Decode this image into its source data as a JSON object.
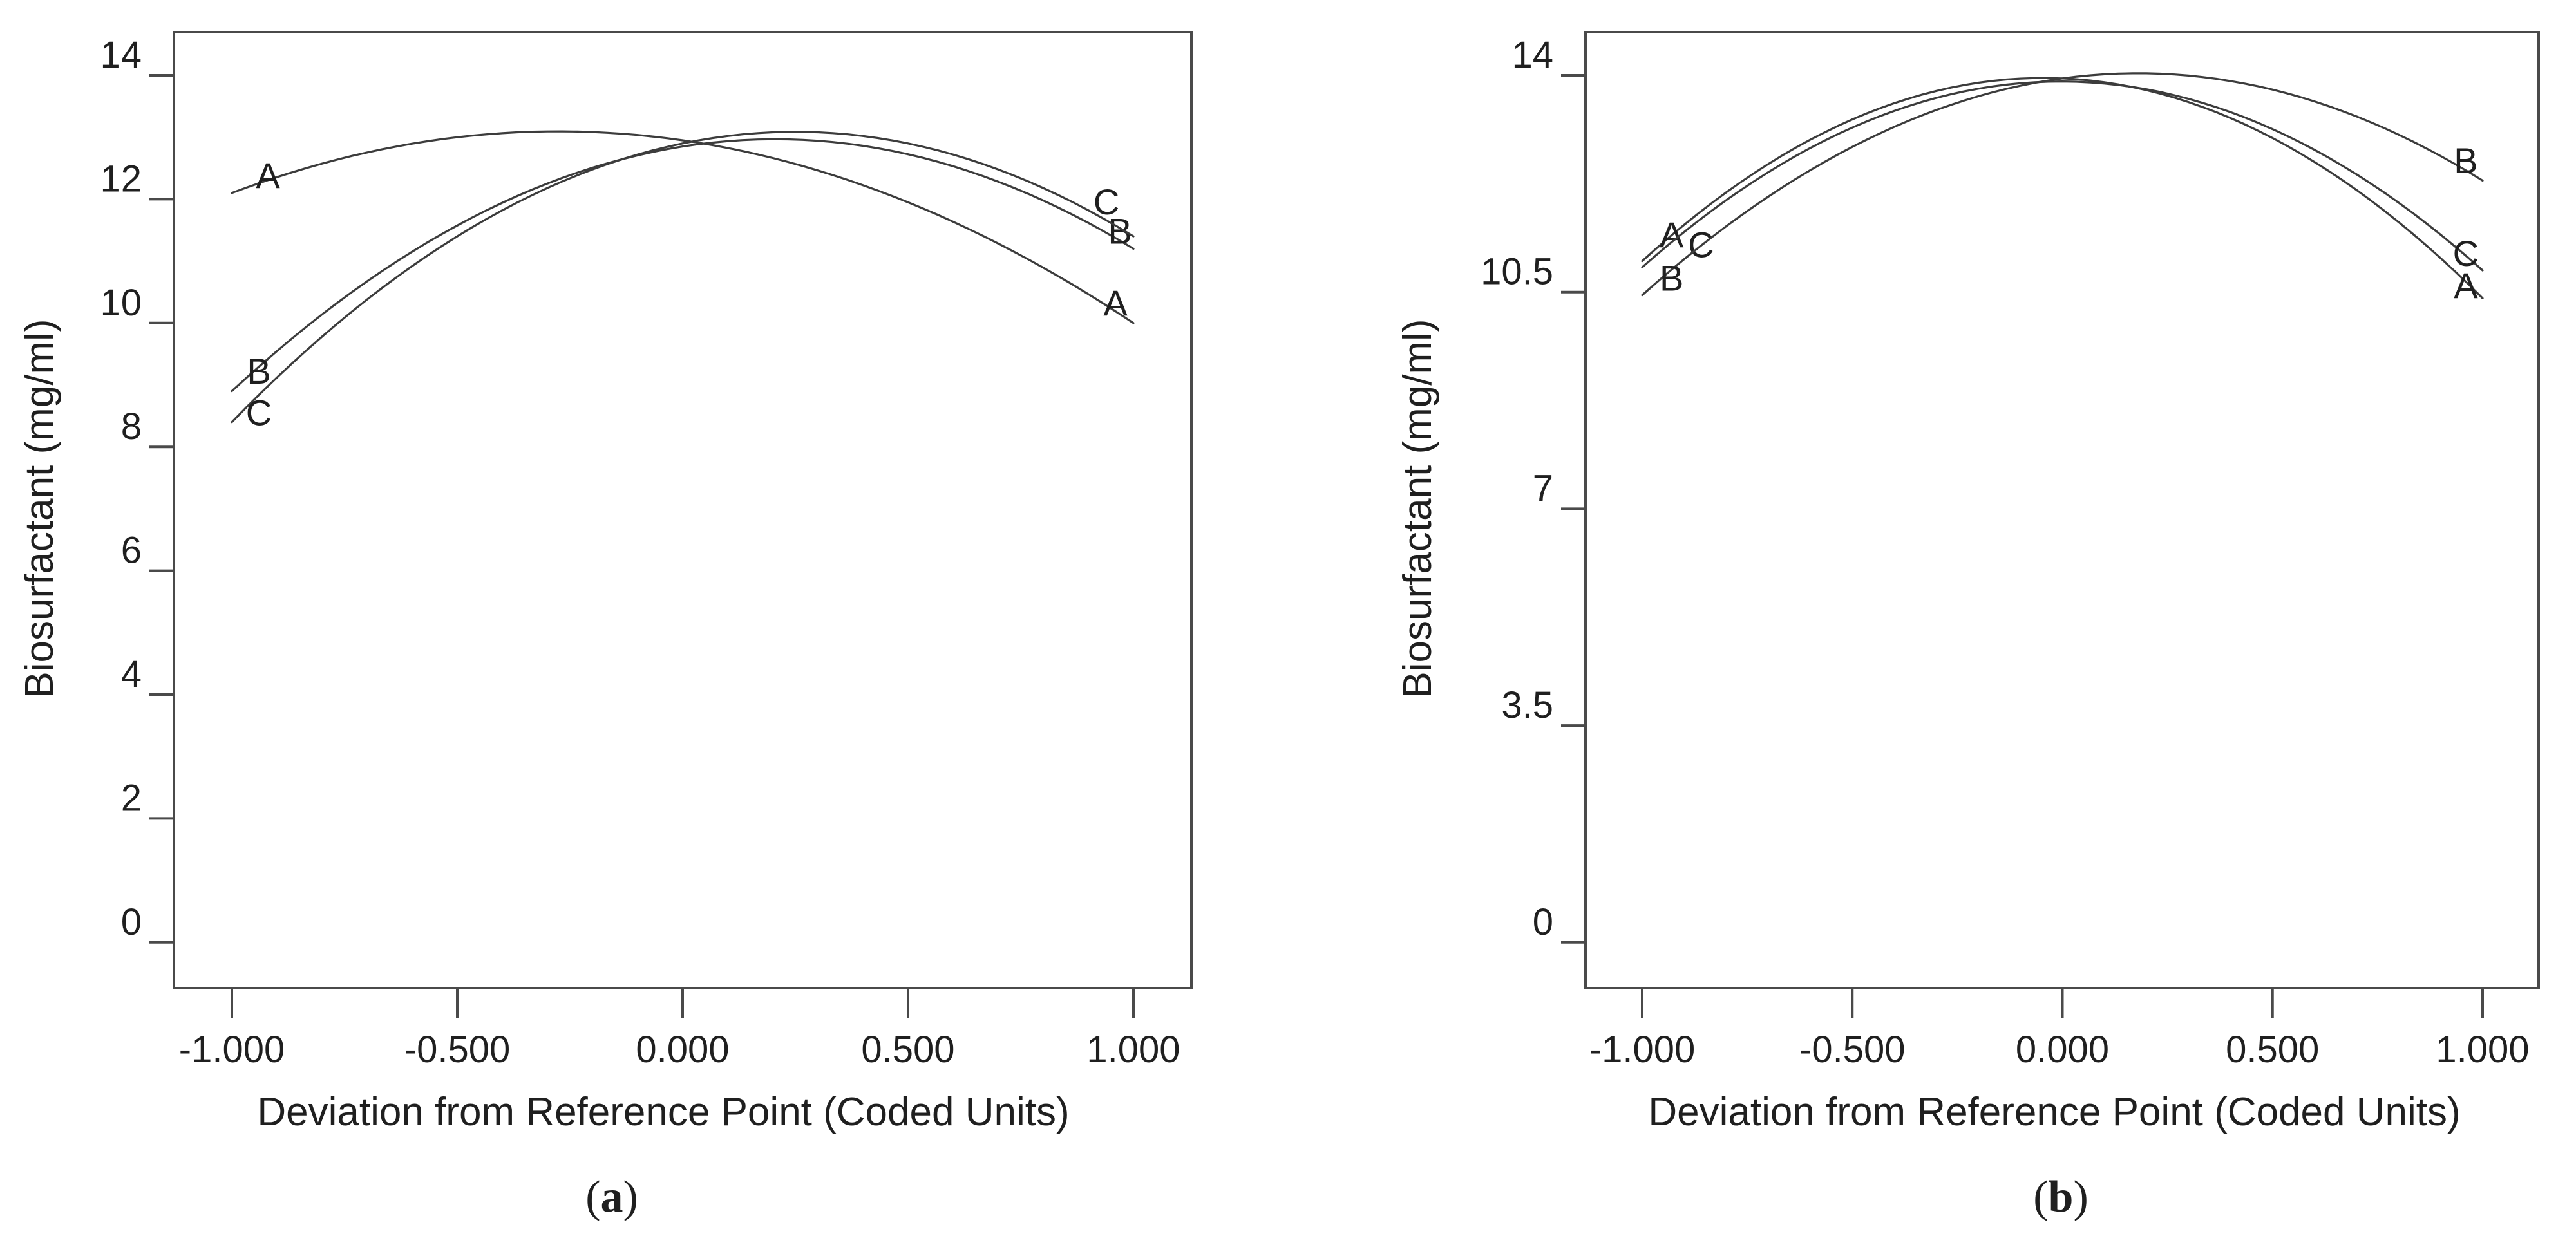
{
  "figure": {
    "background": "#ffffff",
    "text_color": "#1f1f1f",
    "curve_color": "#3c3c3c",
    "frame_color": "#4a4a4a"
  },
  "chart_data": [
    {
      "id": "a",
      "type": "line",
      "caption": {
        "open": "(",
        "letter": "a",
        "close": ")"
      },
      "xlabel": "Deviation from Reference Point (Coded Units)",
      "ylabel": "Biosurfactant (mg/ml)",
      "xlim": [
        -1,
        1
      ],
      "ylim": [
        0,
        14
      ],
      "grid": false,
      "legend_style": "curve-end letter labels",
      "x_ticks": [
        {
          "v": -1.0,
          "label": "-1.000"
        },
        {
          "v": -0.5,
          "label": "-0.500"
        },
        {
          "v": 0.0,
          "label": "0.000"
        },
        {
          "v": 0.5,
          "label": "0.500"
        },
        {
          "v": 1.0,
          "label": "1.000"
        }
      ],
      "y_ticks": [
        {
          "v": 0,
          "label": "0"
        },
        {
          "v": 2,
          "label": "2"
        },
        {
          "v": 4,
          "label": "4"
        },
        {
          "v": 6,
          "label": "6"
        },
        {
          "v": 8,
          "label": "8"
        },
        {
          "v": 10,
          "label": "10"
        },
        {
          "v": 12,
          "label": "12"
        },
        {
          "v": 14,
          "label": "14"
        }
      ],
      "series": [
        {
          "name": "A",
          "coef": {
            "a": -1.9,
            "b": -1.05,
            "c": 12.95
          },
          "x": [
            -1,
            -0.5,
            0,
            0.5,
            1
          ],
          "y": [
            12.1,
            13.0,
            12.95,
            11.95,
            10.0
          ],
          "peak": {
            "x": -0.28,
            "y": 13.1
          },
          "label_left": {
            "x": -0.92,
            "y": 12.38
          },
          "label_right": {
            "x": 0.96,
            "y": 10.32
          }
        },
        {
          "name": "B",
          "coef": {
            "a": -2.8,
            "b": 1.15,
            "c": 12.85
          },
          "x": [
            -1,
            -0.5,
            0,
            0.5,
            1
          ],
          "y": [
            8.9,
            11.58,
            12.85,
            12.73,
            11.2
          ],
          "peak": {
            "x": 0.21,
            "y": 12.97
          },
          "label_left": {
            "x": -0.94,
            "y": 9.22
          },
          "label_right": {
            "x": 0.97,
            "y": 11.48
          }
        },
        {
          "name": "C",
          "coef": {
            "a": -3.0,
            "b": 1.5,
            "c": 12.9
          },
          "x": [
            -1,
            -0.5,
            0,
            0.5,
            1
          ],
          "y": [
            8.4,
            11.4,
            12.9,
            12.9,
            11.4
          ],
          "peak": {
            "x": 0.25,
            "y": 13.09
          },
          "label_left": {
            "x": -0.94,
            "y": 8.55
          },
          "label_right": {
            "x": 0.94,
            "y": 11.95
          }
        }
      ]
    },
    {
      "id": "b",
      "type": "line",
      "caption": {
        "open": "(",
        "letter": "b",
        "close": ")"
      },
      "xlabel": "Deviation from Reference Point (Coded Units)",
      "ylabel": "Biosurfactant (mg/ml)",
      "xlim": [
        -1,
        1
      ],
      "ylim": [
        0,
        14
      ],
      "grid": false,
      "legend_style": "curve-end letter labels",
      "x_ticks": [
        {
          "v": -1.0,
          "label": "-1.000"
        },
        {
          "v": -0.5,
          "label": "-0.500"
        },
        {
          "v": 0.0,
          "label": "0.000"
        },
        {
          "v": 0.5,
          "label": "0.500"
        },
        {
          "v": 1.0,
          "label": "1.000"
        }
      ],
      "y_ticks": [
        {
          "v": 0,
          "label": "0"
        },
        {
          "v": 3.5,
          "label": "3.5"
        },
        {
          "v": 7,
          "label": "7"
        },
        {
          "v": 10.5,
          "label": "10.5"
        },
        {
          "v": 14,
          "label": "14"
        }
      ],
      "series": [
        {
          "name": "A",
          "coef": {
            "a": -3.25,
            "b": -0.3,
            "c": 13.95
          },
          "x": [
            -1,
            -0.5,
            0,
            0.5,
            1
          ],
          "y": [
            11.0,
            13.29,
            13.95,
            12.99,
            10.4
          ],
          "peak": {
            "x": -0.05,
            "y": 13.96
          },
          "label_left": {
            "x": -0.93,
            "y": 11.42
          },
          "label_right": {
            "x": 0.96,
            "y": 10.6
          }
        },
        {
          "name": "C",
          "coef": {
            "a": -3.025,
            "b": -0.025,
            "c": 13.9
          },
          "x": [
            -1,
            -0.5,
            0,
            0.5,
            1
          ],
          "y": [
            10.9,
            13.16,
            13.9,
            13.13,
            10.85
          ],
          "peak": {
            "x": 0.0,
            "y": 13.9
          },
          "label_left": {
            "x": -0.86,
            "y": 11.26
          },
          "label_right": {
            "x": 0.96,
            "y": 11.12
          }
        },
        {
          "name": "B",
          "coef": {
            "a": -2.575,
            "b": 0.925,
            "c": 13.95
          },
          "x": [
            -1,
            -0.5,
            0,
            0.5,
            1
          ],
          "y": [
            10.45,
            12.84,
            13.95,
            13.77,
            12.3
          ],
          "peak": {
            "x": 0.18,
            "y": 14.03
          },
          "label_left": {
            "x": -0.93,
            "y": 10.72
          },
          "label_right": {
            "x": 0.96,
            "y": 12.62
          }
        }
      ]
    }
  ]
}
